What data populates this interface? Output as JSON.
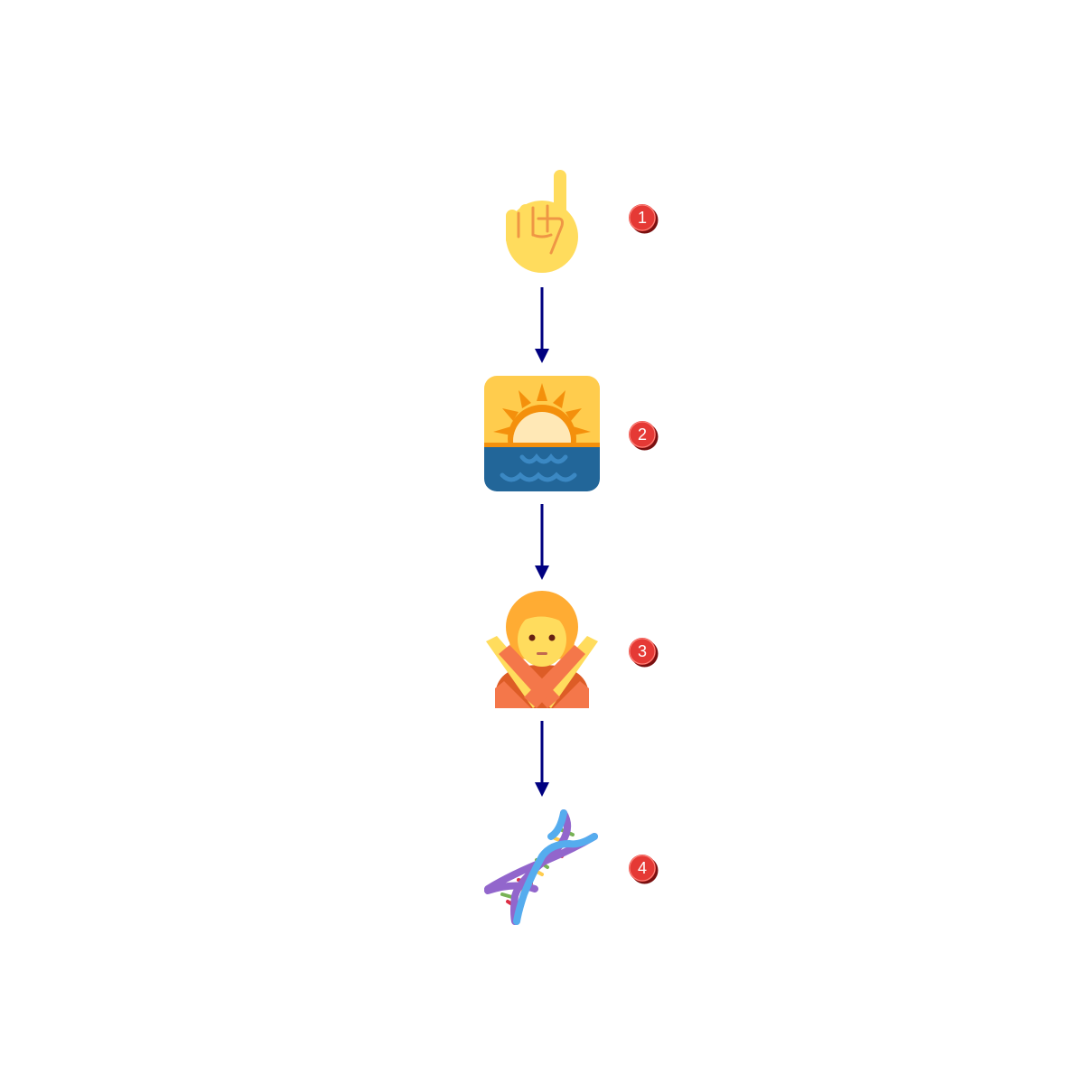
{
  "steps": [
    {
      "number": "1",
      "icon": "index-pointing-up-icon"
    },
    {
      "number": "2",
      "icon": "sunrise-icon"
    },
    {
      "number": "3",
      "icon": "person-gesturing-no-icon"
    },
    {
      "number": "4",
      "icon": "dna-icon"
    }
  ],
  "colors": {
    "arrow": "#000080",
    "badge": "#e53935",
    "badge_text": "#ffffff"
  }
}
